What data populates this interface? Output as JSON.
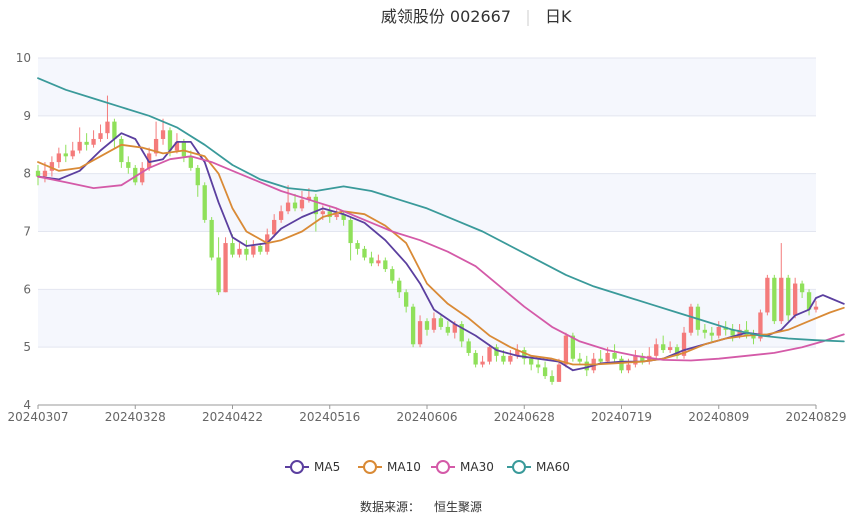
{
  "header": {
    "stock": "威领股份 002667",
    "period": "日K"
  },
  "footer": {
    "source_label": "数据来源：",
    "source_name": "恒生聚源"
  },
  "chart_data": {
    "type": "candlestick",
    "ylim": [
      4,
      10
    ],
    "yticks": [
      4,
      5,
      6,
      7,
      8,
      9,
      10
    ],
    "grid": true,
    "x_tick_labels": [
      "20240307",
      "20240328",
      "20240422",
      "20240516",
      "20240606",
      "20240628",
      "20240719",
      "20240809",
      "20240829"
    ],
    "up_color": "#f47b7b",
    "down_color": "#8fe05a",
    "candles": [
      [
        8.05,
        7.95,
        8.15,
        7.8
      ],
      [
        7.95,
        8.05,
        8.2,
        7.85
      ],
      [
        8.05,
        8.2,
        8.3,
        7.95
      ],
      [
        8.2,
        8.35,
        8.45,
        8.1
      ],
      [
        8.35,
        8.3,
        8.5,
        8.2
      ],
      [
        8.3,
        8.4,
        8.55,
        8.25
      ],
      [
        8.4,
        8.55,
        8.8,
        8.35
      ],
      [
        8.55,
        8.5,
        8.7,
        8.4
      ],
      [
        8.5,
        8.6,
        8.75,
        8.45
      ],
      [
        8.6,
        8.7,
        8.85,
        8.55
      ],
      [
        8.7,
        8.9,
        9.35,
        8.6
      ],
      [
        8.9,
        8.6,
        8.95,
        8.45
      ],
      [
        8.6,
        8.2,
        8.65,
        8.1
      ],
      [
        8.2,
        8.1,
        8.3,
        8.0
      ],
      [
        8.1,
        7.85,
        8.15,
        7.8
      ],
      [
        7.85,
        8.1,
        8.2,
        7.8
      ],
      [
        8.1,
        8.35,
        8.45,
        8.05
      ],
      [
        8.35,
        8.6,
        8.9,
        8.3
      ],
      [
        8.6,
        8.75,
        8.95,
        8.5
      ],
      [
        8.75,
        8.4,
        8.8,
        8.3
      ],
      [
        8.4,
        8.55,
        8.7,
        8.35
      ],
      [
        8.55,
        8.3,
        8.6,
        8.2
      ],
      [
        8.3,
        8.1,
        8.4,
        8.05
      ],
      [
        8.1,
        7.8,
        8.15,
        7.6
      ],
      [
        7.8,
        7.2,
        7.85,
        7.15
      ],
      [
        7.2,
        6.55,
        7.25,
        6.5
      ],
      [
        6.55,
        5.95,
        6.9,
        5.9
      ],
      [
        5.95,
        6.8,
        6.9,
        5.95
      ],
      [
        6.8,
        6.6,
        6.95,
        6.55
      ],
      [
        6.6,
        6.7,
        6.8,
        6.55
      ],
      [
        6.7,
        6.6,
        6.85,
        6.5
      ],
      [
        6.6,
        6.75,
        6.85,
        6.55
      ],
      [
        6.75,
        6.65,
        6.8,
        6.6
      ],
      [
        6.65,
        6.95,
        7.05,
        6.6
      ],
      [
        6.95,
        7.2,
        7.3,
        6.9
      ],
      [
        7.2,
        7.35,
        7.45,
        7.15
      ],
      [
        7.35,
        7.5,
        7.8,
        7.3
      ],
      [
        7.5,
        7.4,
        7.65,
        7.35
      ],
      [
        7.4,
        7.55,
        7.7,
        7.35
      ],
      [
        7.55,
        7.6,
        7.75,
        7.5
      ],
      [
        7.6,
        7.3,
        7.65,
        7.0
      ],
      [
        7.3,
        7.35,
        7.45,
        7.2
      ],
      [
        7.35,
        7.25,
        7.45,
        7.15
      ],
      [
        7.25,
        7.3,
        7.4,
        7.2
      ],
      [
        7.3,
        7.2,
        7.35,
        7.1
      ],
      [
        7.2,
        6.8,
        7.25,
        6.5
      ],
      [
        6.8,
        6.7,
        6.85,
        6.6
      ],
      [
        6.7,
        6.55,
        6.75,
        6.5
      ],
      [
        6.55,
        6.45,
        6.65,
        6.4
      ],
      [
        6.45,
        6.5,
        6.6,
        6.4
      ],
      [
        6.5,
        6.35,
        6.55,
        6.3
      ],
      [
        6.35,
        6.15,
        6.4,
        6.1
      ],
      [
        6.15,
        5.95,
        6.2,
        5.85
      ],
      [
        5.95,
        5.7,
        6.0,
        5.6
      ],
      [
        5.7,
        5.05,
        5.75,
        5.0
      ],
      [
        5.05,
        5.45,
        5.55,
        5.0
      ],
      [
        5.45,
        5.3,
        5.5,
        5.2
      ],
      [
        5.3,
        5.5,
        5.6,
        5.25
      ],
      [
        5.5,
        5.35,
        5.55,
        5.3
      ],
      [
        5.35,
        5.25,
        5.45,
        5.2
      ],
      [
        5.25,
        5.4,
        5.45,
        5.15
      ],
      [
        5.4,
        5.1,
        5.45,
        5.0
      ],
      [
        5.1,
        4.9,
        5.15,
        4.85
      ],
      [
        4.9,
        4.7,
        4.95,
        4.65
      ],
      [
        4.7,
        4.75,
        4.85,
        4.65
      ],
      [
        4.75,
        5.0,
        5.05,
        4.7
      ],
      [
        5.0,
        4.85,
        5.05,
        4.75
      ],
      [
        4.85,
        4.75,
        4.95,
        4.7
      ],
      [
        4.75,
        4.85,
        4.95,
        4.7
      ],
      [
        4.85,
        4.95,
        5.05,
        4.8
      ],
      [
        4.95,
        4.8,
        5.0,
        4.7
      ],
      [
        4.8,
        4.7,
        4.85,
        4.6
      ],
      [
        4.7,
        4.65,
        4.8,
        4.55
      ],
      [
        4.65,
        4.5,
        4.75,
        4.45
      ],
      [
        4.5,
        4.4,
        4.6,
        4.35
      ],
      [
        4.4,
        4.7,
        4.8,
        4.4
      ],
      [
        4.7,
        5.2,
        5.25,
        4.65
      ],
      [
        5.2,
        4.8,
        5.25,
        4.75
      ],
      [
        4.8,
        4.75,
        4.9,
        4.7
      ],
      [
        4.75,
        4.6,
        4.85,
        4.5
      ],
      [
        4.6,
        4.8,
        4.9,
        4.55
      ],
      [
        4.8,
        4.75,
        4.95,
        4.7
      ],
      [
        4.75,
        4.9,
        5.0,
        4.7
      ],
      [
        4.9,
        4.8,
        5.05,
        4.75
      ],
      [
        4.8,
        4.6,
        4.85,
        4.55
      ],
      [
        4.6,
        4.7,
        4.8,
        4.55
      ],
      [
        4.7,
        4.85,
        4.95,
        4.65
      ],
      [
        4.85,
        4.75,
        4.9,
        4.7
      ],
      [
        4.75,
        4.85,
        5.0,
        4.7
      ],
      [
        4.85,
        5.05,
        5.15,
        4.8
      ],
      [
        5.05,
        4.95,
        5.2,
        4.9
      ],
      [
        4.95,
        5.0,
        5.1,
        4.9
      ],
      [
        5.0,
        4.85,
        5.05,
        4.8
      ],
      [
        4.85,
        5.25,
        5.35,
        4.8
      ],
      [
        5.25,
        5.7,
        5.75,
        5.2
      ],
      [
        5.7,
        5.3,
        5.75,
        5.2
      ],
      [
        5.3,
        5.25,
        5.4,
        5.15
      ],
      [
        5.25,
        5.2,
        5.35,
        5.1
      ],
      [
        5.2,
        5.35,
        5.45,
        5.15
      ],
      [
        5.35,
        5.3,
        5.45,
        5.2
      ],
      [
        5.3,
        5.2,
        5.4,
        5.1
      ],
      [
        5.2,
        5.3,
        5.4,
        5.15
      ],
      [
        5.3,
        5.2,
        5.45,
        5.15
      ],
      [
        5.2,
        5.15,
        5.3,
        5.05
      ],
      [
        5.15,
        5.6,
        5.65,
        5.1
      ],
      [
        5.6,
        6.2,
        6.25,
        5.55
      ],
      [
        6.2,
        5.45,
        6.25,
        5.4
      ],
      [
        5.45,
        6.2,
        6.8,
        5.4
      ],
      [
        6.2,
        5.55,
        6.25,
        5.45
      ],
      [
        5.55,
        6.1,
        6.2,
        5.5
      ],
      [
        6.1,
        5.95,
        6.15,
        5.85
      ],
      [
        5.95,
        5.65,
        6.0,
        5.55
      ],
      [
        5.65,
        5.7,
        5.8,
        5.6
      ]
    ],
    "ma": [
      {
        "name": "MA5",
        "color": "#5b3f9f",
        "points": [
          [
            0,
            7.95
          ],
          [
            3,
            7.9
          ],
          [
            6,
            8.05
          ],
          [
            9,
            8.4
          ],
          [
            12,
            8.7
          ],
          [
            14,
            8.6
          ],
          [
            16,
            8.2
          ],
          [
            18,
            8.25
          ],
          [
            20,
            8.55
          ],
          [
            22,
            8.55
          ],
          [
            24,
            8.2
          ],
          [
            26,
            7.5
          ],
          [
            28,
            6.9
          ],
          [
            30,
            6.75
          ],
          [
            33,
            6.8
          ],
          [
            35,
            7.05
          ],
          [
            38,
            7.25
          ],
          [
            41,
            7.4
          ],
          [
            44,
            7.3
          ],
          [
            47,
            7.15
          ],
          [
            50,
            6.85
          ],
          [
            53,
            6.45
          ],
          [
            55,
            6.1
          ],
          [
            57,
            5.65
          ],
          [
            60,
            5.4
          ],
          [
            63,
            5.2
          ],
          [
            66,
            4.95
          ],
          [
            69,
            4.85
          ],
          [
            72,
            4.8
          ],
          [
            75,
            4.75
          ],
          [
            77,
            4.6
          ],
          [
            79,
            4.65
          ],
          [
            81,
            4.72
          ],
          [
            84,
            4.75
          ],
          [
            87,
            4.75
          ],
          [
            90,
            4.8
          ],
          [
            93,
            4.95
          ],
          [
            96,
            5.05
          ],
          [
            99,
            5.15
          ],
          [
            102,
            5.25
          ],
          [
            105,
            5.2
          ],
          [
            107,
            5.3
          ],
          [
            109,
            5.55
          ],
          [
            111,
            5.65
          ],
          [
            112,
            5.85
          ],
          [
            113,
            5.9
          ],
          [
            114,
            5.85
          ],
          [
            116,
            5.75
          ]
        ]
      },
      {
        "name": "MA10",
        "color": "#d98a36",
        "points": [
          [
            0,
            8.2
          ],
          [
            3,
            8.05
          ],
          [
            6,
            8.1
          ],
          [
            9,
            8.3
          ],
          [
            12,
            8.5
          ],
          [
            15,
            8.45
          ],
          [
            18,
            8.35
          ],
          [
            21,
            8.4
          ],
          [
            24,
            8.3
          ],
          [
            26,
            8.0
          ],
          [
            28,
            7.4
          ],
          [
            30,
            7.0
          ],
          [
            33,
            6.8
          ],
          [
            35,
            6.85
          ],
          [
            38,
            7.0
          ],
          [
            41,
            7.25
          ],
          [
            44,
            7.35
          ],
          [
            47,
            7.3
          ],
          [
            50,
            7.1
          ],
          [
            53,
            6.8
          ],
          [
            56,
            6.1
          ],
          [
            59,
            5.75
          ],
          [
            62,
            5.5
          ],
          [
            65,
            5.2
          ],
          [
            68,
            5.0
          ],
          [
            71,
            4.85
          ],
          [
            74,
            4.8
          ],
          [
            77,
            4.7
          ],
          [
            80,
            4.7
          ],
          [
            83,
            4.72
          ],
          [
            87,
            4.75
          ],
          [
            90,
            4.8
          ],
          [
            93,
            4.9
          ],
          [
            96,
            5.05
          ],
          [
            99,
            5.15
          ],
          [
            102,
            5.2
          ],
          [
            105,
            5.22
          ],
          [
            108,
            5.3
          ],
          [
            111,
            5.45
          ],
          [
            114,
            5.6
          ],
          [
            116,
            5.68
          ]
        ]
      },
      {
        "name": "MA30",
        "color": "#d45aa8",
        "points": [
          [
            0,
            7.95
          ],
          [
            4,
            7.85
          ],
          [
            8,
            7.75
          ],
          [
            12,
            7.8
          ],
          [
            16,
            8.1
          ],
          [
            19,
            8.25
          ],
          [
            22,
            8.3
          ],
          [
            25,
            8.2
          ],
          [
            28,
            8.05
          ],
          [
            31,
            7.9
          ],
          [
            35,
            7.7
          ],
          [
            39,
            7.55
          ],
          [
            43,
            7.4
          ],
          [
            47,
            7.2
          ],
          [
            51,
            7.0
          ],
          [
            55,
            6.85
          ],
          [
            59,
            6.65
          ],
          [
            63,
            6.4
          ],
          [
            66,
            6.1
          ],
          [
            70,
            5.7
          ],
          [
            74,
            5.35
          ],
          [
            78,
            5.1
          ],
          [
            82,
            4.95
          ],
          [
            86,
            4.85
          ],
          [
            90,
            4.78
          ],
          [
            94,
            4.77
          ],
          [
            98,
            4.8
          ],
          [
            102,
            4.85
          ],
          [
            106,
            4.9
          ],
          [
            110,
            5.0
          ],
          [
            113,
            5.1
          ],
          [
            116,
            5.22
          ]
        ]
      },
      {
        "name": "MA60",
        "color": "#3a9a9a",
        "points": [
          [
            0,
            9.65
          ],
          [
            4,
            9.45
          ],
          [
            8,
            9.3
          ],
          [
            12,
            9.15
          ],
          [
            16,
            9.0
          ],
          [
            20,
            8.8
          ],
          [
            24,
            8.5
          ],
          [
            28,
            8.15
          ],
          [
            32,
            7.9
          ],
          [
            36,
            7.75
          ],
          [
            40,
            7.7
          ],
          [
            44,
            7.78
          ],
          [
            48,
            7.7
          ],
          [
            52,
            7.55
          ],
          [
            56,
            7.4
          ],
          [
            60,
            7.2
          ],
          [
            64,
            7.0
          ],
          [
            68,
            6.75
          ],
          [
            72,
            6.5
          ],
          [
            76,
            6.25
          ],
          [
            80,
            6.05
          ],
          [
            84,
            5.9
          ],
          [
            88,
            5.75
          ],
          [
            92,
            5.6
          ],
          [
            96,
            5.45
          ],
          [
            100,
            5.3
          ],
          [
            104,
            5.2
          ],
          [
            108,
            5.15
          ],
          [
            112,
            5.12
          ],
          [
            116,
            5.1
          ]
        ]
      }
    ]
  }
}
